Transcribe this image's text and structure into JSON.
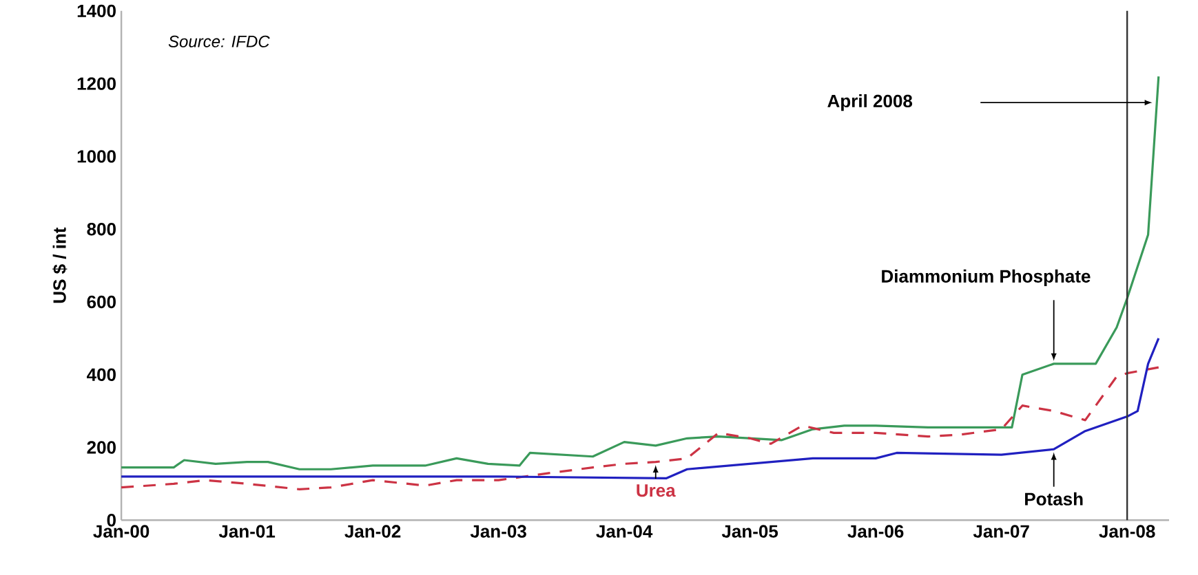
{
  "chart_data": {
    "type": "line",
    "ylabel": "US $ / int",
    "xlim": [
      "2000-01",
      "2008-05"
    ],
    "xticks": [
      {
        "value": "2000-01",
        "label": "Jan-00"
      },
      {
        "value": "2001-01",
        "label": "Jan-01"
      },
      {
        "value": "2002-01",
        "label": "Jan-02"
      },
      {
        "value": "2003-01",
        "label": "Jan-03"
      },
      {
        "value": "2004-01",
        "label": "Jan-04"
      },
      {
        "value": "2005-01",
        "label": "Jan-05"
      },
      {
        "value": "2006-01",
        "label": "Jan-06"
      },
      {
        "value": "2007-01",
        "label": "Jan-07"
      },
      {
        "value": "2008-01",
        "label": "Jan-08"
      }
    ],
    "ylim": [
      0,
      1400
    ],
    "yticks": [
      0,
      200,
      400,
      600,
      800,
      1000,
      1200,
      1400
    ],
    "grid": false,
    "legend": false,
    "series": [
      {
        "name": "Diammonium Phosphate",
        "color": "#3a9a5a",
        "line_style": "solid",
        "x": [
          "2000-01",
          "2000-06",
          "2000-07",
          "2000-10",
          "2001-01",
          "2001-03",
          "2001-06",
          "2001-09",
          "2002-01",
          "2002-06",
          "2002-09",
          "2002-12",
          "2003-03",
          "2003-04",
          "2003-10",
          "2004-01",
          "2004-04",
          "2004-07",
          "2004-10",
          "2005-01",
          "2005-04",
          "2005-07",
          "2005-10",
          "2006-01",
          "2006-06",
          "2006-09",
          "2007-02",
          "2007-03",
          "2007-06",
          "2007-10",
          "2007-12",
          "2008-01",
          "2008-03",
          "2008-04"
        ],
        "values": [
          145,
          145,
          165,
          155,
          160,
          160,
          140,
          140,
          150,
          150,
          170,
          155,
          150,
          185,
          175,
          215,
          205,
          225,
          230,
          225,
          220,
          250,
          260,
          260,
          255,
          255,
          255,
          400,
          430,
          430,
          530,
          610,
          785,
          1220
        ]
      },
      {
        "name": "Urea",
        "color": "#cc3344",
        "line_style": "dashed",
        "x": [
          "2000-01",
          "2000-06",
          "2000-09",
          "2001-01",
          "2001-06",
          "2001-09",
          "2002-01",
          "2002-06",
          "2002-09",
          "2003-01",
          "2003-06",
          "2003-10",
          "2004-01",
          "2004-04",
          "2004-07",
          "2004-10",
          "2005-01",
          "2005-03",
          "2005-06",
          "2005-09",
          "2006-01",
          "2006-06",
          "2006-09",
          "2007-01",
          "2007-03",
          "2007-06",
          "2007-09",
          "2007-12",
          "2008-01",
          "2008-04"
        ],
        "values": [
          90,
          100,
          110,
          100,
          85,
          90,
          110,
          95,
          110,
          110,
          130,
          145,
          155,
          160,
          170,
          240,
          225,
          210,
          260,
          240,
          240,
          230,
          235,
          250,
          315,
          300,
          275,
          395,
          404,
          420
        ]
      },
      {
        "name": "Potash",
        "color": "#2020c0",
        "line_style": "solid",
        "x": [
          "2000-01",
          "2003-01",
          "2004-05",
          "2004-07",
          "2005-01",
          "2005-07",
          "2006-01",
          "2006-03",
          "2007-01",
          "2007-06",
          "2007-09",
          "2008-01",
          "2008-02",
          "2008-03",
          "2008-04"
        ],
        "values": [
          120,
          120,
          115,
          140,
          155,
          170,
          170,
          185,
          180,
          195,
          245,
          285,
          300,
          430,
          500
        ]
      }
    ],
    "ref_lines": [
      {
        "axis": "x",
        "value": "2008-01",
        "color": "#333333",
        "line_style": "solid"
      }
    ],
    "annotations": [
      "Source: IFDC",
      "April 2008"
    ]
  }
}
